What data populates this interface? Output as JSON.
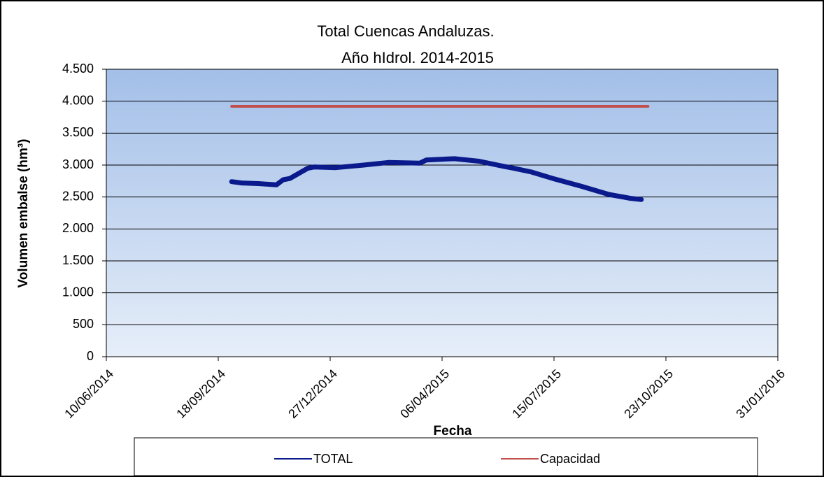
{
  "chart_data": {
    "type": "line",
    "title": [
      "Total Cuencas Andaluzas.",
      "Año hIdrol. 2014-2015"
    ],
    "x_label": "Fecha",
    "y_label": "Volumen embalse (hm³)",
    "series": [
      {
        "name": "TOTAL",
        "color": "#0a1a8c",
        "x": [
          "30/09/2014",
          "09/10/2014",
          "24/10/2014",
          "09/11/2014",
          "15/11/2014",
          "21/11/2014",
          "07/12/2014",
          "13/12/2014",
          "01/01/2015",
          "26/01/2015",
          "17/02/2015",
          "17/03/2015",
          "23/03/2015",
          "17/04/2015",
          "09/05/2015",
          "31/05/2015",
          "09/06/2015",
          "25/06/2015",
          "14/07/2015",
          "08/08/2015",
          "02/09/2015",
          "21/09/2015",
          "01/10/2015"
        ],
        "values": [
          2740,
          2720,
          2710,
          2690,
          2770,
          2790,
          2950,
          2970,
          2960,
          3000,
          3040,
          3030,
          3080,
          3100,
          3060,
          2980,
          2950,
          2890,
          2790,
          2670,
          2540,
          2480,
          2460
        ]
      },
      {
        "name": "Capacidad",
        "color": "#c0504d",
        "x": [
          "30/09/2014",
          "07/10/2015"
        ],
        "values": [
          3920,
          3920
        ]
      }
    ],
    "xlim": [
      "10/06/2014",
      "31/01/2016"
    ],
    "xticks": [
      "10/06/2014",
      "18/09/2014",
      "27/12/2014",
      "06/04/2015",
      "15/07/2015",
      "23/10/2015",
      "31/01/2016"
    ],
    "ylim": [
      0,
      4500
    ],
    "yticks": [
      0,
      500,
      {
        "value": 1000,
        "label": "1.000"
      },
      {
        "value": 1500,
        "label": "1.500"
      },
      {
        "value": 2000,
        "label": "2.000"
      },
      {
        "value": 2500,
        "label": "2.500"
      },
      {
        "value": 3000,
        "label": "3.000"
      },
      {
        "value": 3500,
        "label": "3.500"
      },
      {
        "value": 4000,
        "label": "4.000"
      },
      {
        "value": 4500,
        "label": "4.500"
      }
    ],
    "grid": true,
    "legend": "bottom"
  }
}
